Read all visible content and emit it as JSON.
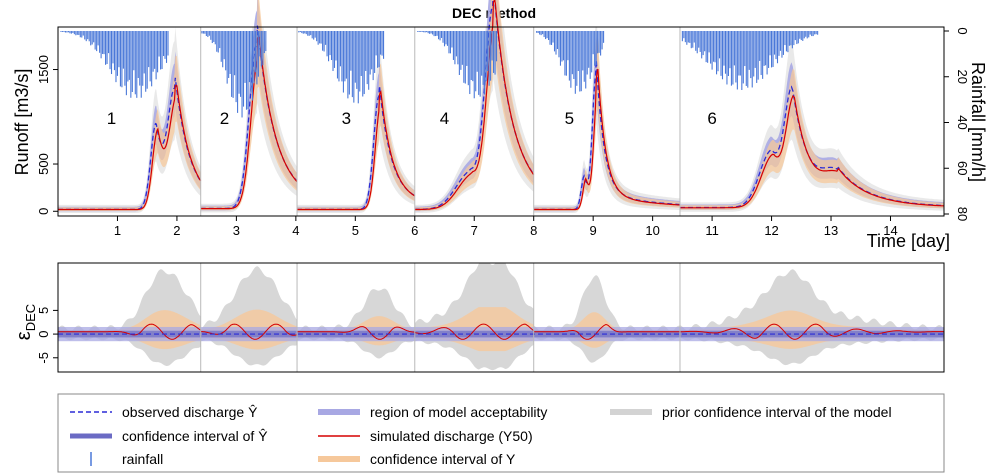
{
  "chart_data": [
    {
      "type": "line",
      "title": "DEC method",
      "xlabel": "Time [day]",
      "ylabel": "Runoff [m3/s]",
      "ylabel_right": "Rainfall [mm/h]",
      "xlim": [
        0,
        14.9
      ],
      "ylim": [
        -50,
        1950
      ],
      "rain_lim": [
        0,
        80
      ],
      "xticks": [
        1,
        2,
        3,
        4,
        5,
        6,
        7,
        8,
        9,
        10,
        11,
        12,
        13,
        14
      ],
      "xtick_labels": [
        "1",
        "2",
        "3",
        "4",
        "5",
        "6",
        "7",
        "8",
        "9",
        "10",
        "11",
        "12",
        "13",
        "14"
      ],
      "yticks": [
        0,
        500,
        1500
      ],
      "ytick_labels": [
        "0",
        "500",
        "1500"
      ],
      "rain_ticks": [
        0,
        20,
        40,
        60,
        80
      ],
      "rain_tick_labels": [
        "0",
        "20",
        "40",
        "60",
        "80"
      ],
      "event_boundaries": [
        2.4,
        4.02,
        6.0,
        8.0,
        10.46
      ],
      "events": [
        {
          "label": "1",
          "x": 0.9
        },
        {
          "label": "2",
          "x": 2.8
        },
        {
          "label": "3",
          "x": 4.85
        },
        {
          "label": "4",
          "x": 6.5
        },
        {
          "label": "5",
          "x": 8.6
        },
        {
          "label": "6",
          "x": 11.0
        }
      ],
      "flood_events": [
        {
          "start": 0,
          "end": 2.4,
          "base": 20,
          "peaks": [
            [
              1.65,
              900,
              0.09
            ],
            [
              1.97,
              1100,
              0.11
            ]
          ]
        },
        {
          "start": 2.4,
          "end": 4.02,
          "base": 30,
          "peaks": [
            [
              3.35,
              1750,
              0.13
            ]
          ]
        },
        {
          "start": 4.02,
          "end": 6.0,
          "base": 20,
          "peaks": [
            [
              5.4,
              1200,
              0.09
            ]
          ]
        },
        {
          "start": 6.0,
          "end": 8.0,
          "base": 20,
          "peaks": [
            [
              6.95,
              400,
              0.25
            ],
            [
              7.32,
              1950,
              0.13
            ]
          ]
        },
        {
          "start": 8.0,
          "end": 10.46,
          "base": 20,
          "peaks": [
            [
              8.85,
              350,
              0.05
            ],
            [
              9.05,
              1380,
              0.06
            ]
          ]
        },
        {
          "start": 10.46,
          "end": 14.9,
          "base": 40,
          "peaks": [
            [
              12.0,
              600,
              0.2
            ],
            [
              12.35,
              1000,
              0.12
            ],
            [
              13.1,
              300,
              0.25
            ]
          ]
        }
      ],
      "rain_bursts": [
        {
          "start": 0.05,
          "end": 1.85,
          "peak": 1.3,
          "max": 30
        },
        {
          "start": 2.42,
          "end": 3.5,
          "peak": 3.1,
          "max": 38
        },
        {
          "start": 4.05,
          "end": 5.5,
          "peak": 5.0,
          "max": 32
        },
        {
          "start": 6.05,
          "end": 7.4,
          "peak": 7.05,
          "max": 30
        },
        {
          "start": 8.05,
          "end": 9.2,
          "peak": 8.75,
          "max": 28
        },
        {
          "start": 10.5,
          "end": 12.8,
          "peak": 11.5,
          "max": 26
        }
      ]
    },
    {
      "type": "line",
      "ylabel": "εDEC",
      "ylabel_main": "ε",
      "ylabel_sub": "DEC",
      "xlim": [
        0,
        14.9
      ],
      "ylim": [
        -8,
        15
      ],
      "yticks": [
        -5,
        0,
        5
      ],
      "ytick_labels": [
        "-5",
        "0",
        "5"
      ],
      "acceptability_band": [
        -1.5,
        1.5
      ],
      "confidence_band": [
        -0.7,
        0.7
      ]
    }
  ],
  "legend": [
    {
      "key": "observed",
      "label": "observed discharge Ŷ"
    },
    {
      "key": "conf_obs",
      "label": "confidence interval of Ŷ"
    },
    {
      "key": "rainfall",
      "label": "rainfall"
    },
    {
      "key": "region",
      "label": "region of model acceptability"
    },
    {
      "key": "simulated",
      "label": "simulated discharge (Y50)"
    },
    {
      "key": "conf_y",
      "label": "confidence interval of Y"
    },
    {
      "key": "prior",
      "label": "prior confidence interval of the model"
    }
  ],
  "colors": {
    "observed": "#2b2bd6",
    "conf_obs": "#6b6bc4",
    "rainfall": "#4a78d8",
    "region": "#a8a8e3",
    "simulated": "#d60000",
    "conf_y": "#f6c89b",
    "prior": "#d3d3d3",
    "axis": "#000000",
    "divider": "#b9b9b9",
    "event_label": "#b0b0b0"
  }
}
